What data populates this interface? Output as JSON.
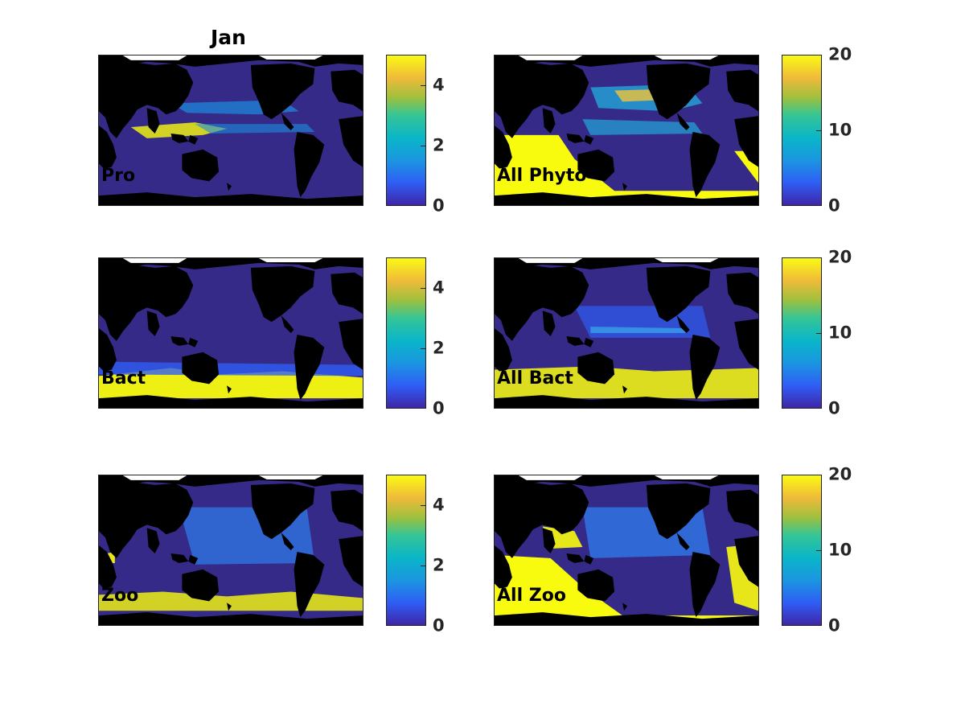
{
  "title": "Jan",
  "panels": [
    {
      "label": "Pro",
      "colorbar_ticks": [
        "4",
        "2",
        "0"
      ],
      "colorbar_range": [
        0,
        5
      ]
    },
    {
      "label": "All Phyto",
      "colorbar_ticks": [
        "20",
        "10",
        "0"
      ],
      "colorbar_range": [
        0,
        20
      ]
    },
    {
      "label": "Bact",
      "colorbar_ticks": [
        "4",
        "2",
        "0"
      ],
      "colorbar_range": [
        0,
        5
      ]
    },
    {
      "label": "All Bact",
      "colorbar_ticks": [
        "20",
        "10",
        "0"
      ],
      "colorbar_range": [
        0,
        20
      ]
    },
    {
      "label": "Zoo",
      "colorbar_ticks": [
        "4",
        "2",
        "0"
      ],
      "colorbar_range": [
        0,
        5
      ]
    },
    {
      "label": "All Zoo",
      "colorbar_ticks": [
        "20",
        "10",
        "0"
      ],
      "colorbar_range": [
        0,
        20
      ]
    }
  ],
  "colormap": "parula",
  "colors": {
    "land": "#000000",
    "low": "#352a87",
    "mid": "#1d8de0",
    "high": "#f9fb0e"
  }
}
